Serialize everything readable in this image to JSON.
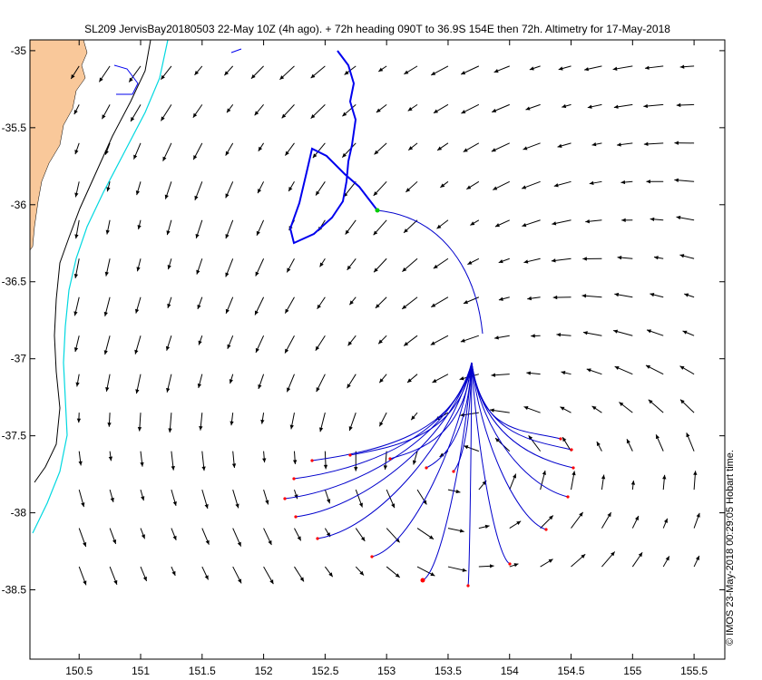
{
  "title": "SL209 JervisBay20180503 22-May 10Z (4h ago). + 72h heading 090T to 36.9S 154E then 72h. Altimetry for 17-May-2018",
  "credit": "© IMOS 23-May-2018 00:29:05 Hobart time.",
  "map": {
    "lon_range": [
      150.1,
      155.75
    ],
    "lat_range": [
      -38.95,
      -34.93
    ],
    "x_ticks": [
      150.5,
      151,
      151.5,
      152,
      152.5,
      153,
      153.5,
      154,
      154.5,
      155,
      155.5
    ],
    "x_tick_labels": [
      "150.5",
      "151",
      "151.5",
      "152",
      "152.5",
      "153",
      "153.5",
      "154",
      "154.5",
      "155",
      "155.5"
    ],
    "y_ticks": [
      -35,
      -35.5,
      -36,
      -36.5,
      -37,
      -37.5,
      -38,
      -38.5
    ],
    "y_tick_labels": [
      "-35",
      "-35.5",
      "-36",
      "-36.5",
      "-37",
      "-37.5",
      "-38",
      "-38.5"
    ],
    "colors": {
      "land": "#f9c89a",
      "isobath_200m": "#000000",
      "isobath_2000m": "#00d8e0",
      "glider_track": "#0000ee",
      "forecast": "#0000cc",
      "current_arrow": "#000000",
      "glider_position": "#00cc00",
      "forecast_endpoint": "#ff0000"
    }
  }
}
